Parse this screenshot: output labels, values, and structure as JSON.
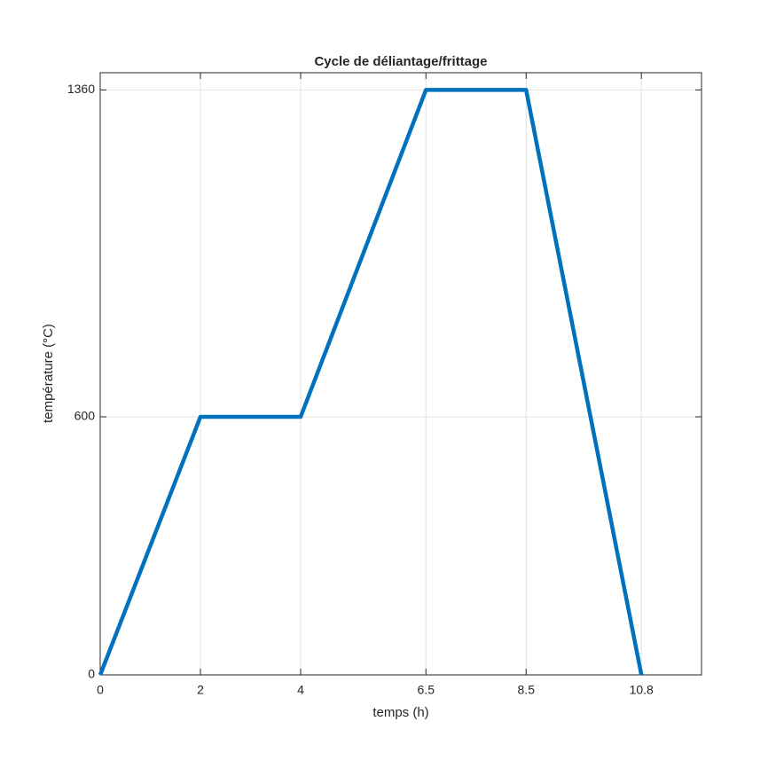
{
  "chart_data": {
    "type": "line",
    "title": "Cycle de déliantage/frittage",
    "x_label": "temps (h)",
    "y_label": "température (°C)",
    "x": [
      0,
      2,
      4,
      6.5,
      8.5,
      10.8
    ],
    "series": [
      {
        "color": "#0072bd",
        "values": [
          0,
          600,
          600,
          1360,
          1360,
          0
        ]
      }
    ],
    "xlim": [
      0,
      12
    ],
    "ylim": [
      0,
      1400
    ],
    "xticks": [
      0,
      2,
      4,
      6.5,
      8.5,
      10.8
    ],
    "yticks": [
      0,
      600,
      1360
    ],
    "grid": true
  }
}
